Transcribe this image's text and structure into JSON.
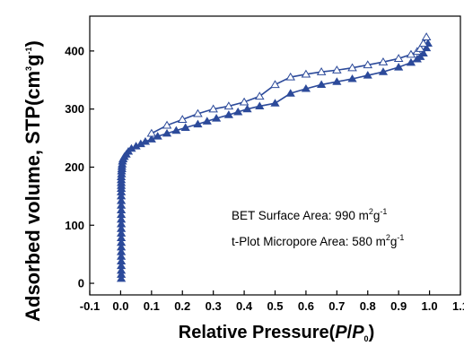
{
  "chart_data": {
    "type": "scatter",
    "xlabel": "Relative Pressure(",
    "xlabel_italic_p": "P",
    "xlabel_slash": "/",
    "xlabel_italic_p0": "P",
    "xlabel_sub": "0",
    "xlabel_close": ")",
    "ylabel": "Adsorbed volume, STP(cm",
    "ylabel_sup1": "3",
    "ylabel_mid": "g",
    "ylabel_sup2": "-1",
    "ylabel_close": ")",
    "xlim": [
      -0.1,
      1.1
    ],
    "ylim": [
      -20,
      460
    ],
    "xticks": [
      "-0.1",
      "0.0",
      "0.1",
      "0.2",
      "0.3",
      "0.4",
      "0.5",
      "0.6",
      "0.7",
      "0.8",
      "0.9",
      "1.0",
      "1.1"
    ],
    "xtick_values": [
      -0.1,
      0.0,
      0.1,
      0.2,
      0.3,
      0.4,
      0.5,
      0.6,
      0.7,
      0.8,
      0.9,
      1.0,
      1.1
    ],
    "yticks": [
      "0",
      "100",
      "200",
      "300",
      "400"
    ],
    "ytick_values": [
      0,
      100,
      200,
      300,
      400
    ],
    "grid": false,
    "line_color": "#2c4a9a",
    "series": [
      {
        "marker": "filled-triangle",
        "x": [
          0.002,
          0.002,
          0.002,
          0.002,
          0.002,
          0.002,
          0.002,
          0.002,
          0.002,
          0.002,
          0.002,
          0.002,
          0.002,
          0.002,
          0.002,
          0.002,
          0.002,
          0.002,
          0.002,
          0.002,
          0.002,
          0.002,
          0.002,
          0.002,
          0.002,
          0.003,
          0.003,
          0.004,
          0.004,
          0.005,
          0.006,
          0.008,
          0.012,
          0.018,
          0.025,
          0.035,
          0.05,
          0.065,
          0.08,
          0.1,
          0.12,
          0.15,
          0.18,
          0.21,
          0.25,
          0.28,
          0.31,
          0.35,
          0.38,
          0.41,
          0.45,
          0.5,
          0.55,
          0.6,
          0.65,
          0.7,
          0.75,
          0.8,
          0.85,
          0.9,
          0.94,
          0.96,
          0.97,
          0.98,
          0.99,
          0.995
        ],
        "y": [
          8,
          15,
          22,
          30,
          38,
          46,
          54,
          62,
          70,
          78,
          86,
          94,
          102,
          110,
          118,
          126,
          134,
          142,
          150,
          157,
          163,
          168,
          173,
          178,
          183,
          188,
          193,
          197,
          201,
          205,
          210,
          214,
          218,
          222,
          227,
          232,
          236,
          240,
          244,
          248,
          253,
          258,
          263,
          268,
          274,
          279,
          284,
          290,
          295,
          300,
          305,
          310,
          327,
          335,
          342,
          347,
          352,
          358,
          364,
          372,
          380,
          386,
          390,
          396,
          405,
          413
        ]
      },
      {
        "marker": "open-triangle",
        "x": [
          0.1,
          0.15,
          0.2,
          0.25,
          0.3,
          0.35,
          0.4,
          0.45,
          0.5,
          0.55,
          0.6,
          0.65,
          0.7,
          0.75,
          0.8,
          0.85,
          0.9,
          0.94,
          0.96,
          0.97,
          0.98,
          0.99
        ],
        "y": [
          258,
          272,
          282,
          292,
          300,
          305,
          312,
          322,
          342,
          355,
          360,
          364,
          367,
          371,
          376,
          381,
          387,
          394,
          399,
          404,
          413,
          424
        ]
      }
    ],
    "annotations": [
      {
        "label": "BET Surface Area: 990 m",
        "sup1": "2",
        "mid": "g",
        "sup2": "-1"
      },
      {
        "label": "t-Plot Micropore Area: 580 m",
        "sup1": "2",
        "mid": "g",
        "sup2": "-1"
      }
    ]
  }
}
